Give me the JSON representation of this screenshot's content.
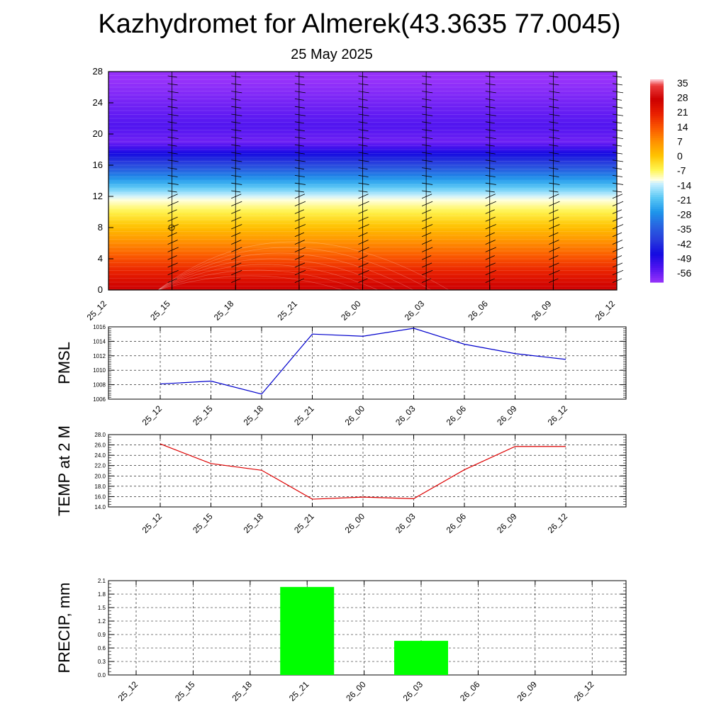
{
  "title": "Kazhydromet for Almerek(43.3635 77.0045)",
  "subtitle": "25 May 2025",
  "time_labels": [
    "25_12",
    "25_15",
    "25_18",
    "25_21",
    "26_00",
    "26_03",
    "26_06",
    "26_09",
    "26_12"
  ],
  "chart_data": [
    {
      "type": "heatmap",
      "name_hint": "temperature-height cross section",
      "x": [
        "25_12",
        "25_15",
        "25_18",
        "25_21",
        "26_00",
        "26_03",
        "26_06",
        "26_09",
        "26_12"
      ],
      "y_ticks": [
        0,
        4,
        8,
        12,
        16,
        20,
        24,
        28
      ],
      "ylim": [
        0,
        28
      ],
      "colorbar_ticks": [
        "35",
        "28",
        "21",
        "14",
        "7",
        "0",
        "-7",
        "-14",
        "-21",
        "-28",
        "-35",
        "-42",
        "-49",
        "-56"
      ],
      "color_range": [
        -63,
        38
      ],
      "wind_barbs": true
    },
    {
      "type": "line",
      "ylabel": "PMSL",
      "x": [
        "25_12",
        "25_15",
        "25_18",
        "25_21",
        "26_00",
        "26_03",
        "26_06",
        "26_09",
        "26_12"
      ],
      "values": [
        1008.1,
        1008.5,
        1006.7,
        1015.0,
        1014.7,
        1015.8,
        1013.6,
        1012.3,
        1011.5
      ],
      "ylim": [
        1006,
        1016
      ],
      "y_ticks": [
        "1006",
        "1008",
        "1010",
        "1012",
        "1014",
        "1016"
      ],
      "color": "#0000cc",
      "grid": true
    },
    {
      "type": "line",
      "ylabel": "TEMP at 2 M",
      "x": [
        "25_12",
        "25_15",
        "25_18",
        "25_21",
        "26_00",
        "26_03",
        "26_06",
        "26_09",
        "26_12"
      ],
      "values": [
        26.2,
        22.4,
        21.1,
        15.5,
        15.9,
        15.6,
        21.2,
        25.7,
        25.7
      ],
      "ylim": [
        14,
        28
      ],
      "y_ticks": [
        "14.0",
        "16.0",
        "18.0",
        "20.0",
        "22.0",
        "24.0",
        "26.0",
        "28.0"
      ],
      "color": "#dd0000",
      "grid": true
    },
    {
      "type": "bar",
      "ylabel": "PRECIP, mm",
      "categories": [
        "25_12",
        "25_15",
        "25_18",
        "25_21",
        "26_00",
        "26_03",
        "26_06",
        "26_09",
        "26_12"
      ],
      "values": [
        0,
        0,
        0,
        1.96,
        0,
        0.76,
        0,
        0,
        0
      ],
      "ylim": [
        0,
        2.1
      ],
      "y_ticks": [
        "0.0",
        "0.3",
        "0.6",
        "0.9",
        "1.2",
        "1.5",
        "1.8",
        "2.1"
      ],
      "color": "#00ff00",
      "grid": true
    }
  ]
}
